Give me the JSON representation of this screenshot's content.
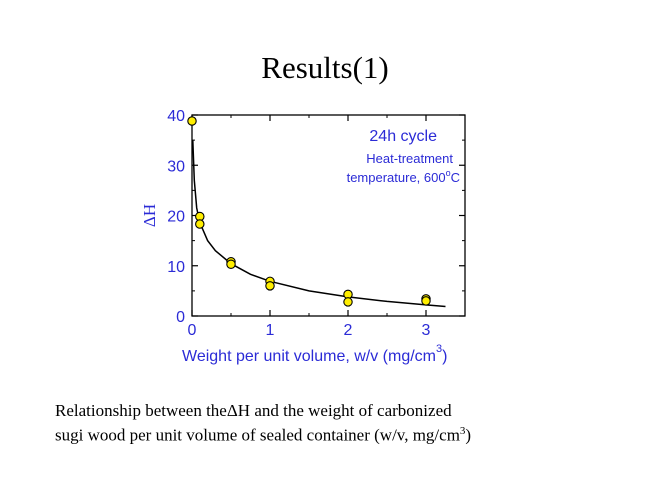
{
  "slide": {
    "title": "Results(1)",
    "caption_line1_pre": "Relationship between the",
    "caption_delta": "ΔH",
    "caption_line1_post": " and the weight of carbonized",
    "caption_line2_pre": "sugi wood per unit volume of sealed container (w/v, mg/cm",
    "caption_sup": "3",
    "caption_line2_post": ")"
  },
  "chart_data": {
    "type": "scatter",
    "title": "",
    "xlabel": "Weight per unit volume, w/v (mg/cm",
    "xlabel_sup": "3",
    "xlabel_post": ")",
    "ylabel": "ΔH",
    "xlim": [
      0,
      3.5
    ],
    "ylim": [
      0,
      40
    ],
    "x_ticks": [
      0,
      1,
      2,
      3
    ],
    "y_ticks": [
      0,
      10,
      20,
      30,
      40
    ],
    "grid": false,
    "annotations": [
      "24h cycle",
      "Heat-treatment",
      "temperature, 600",
      "o",
      "C"
    ],
    "series": [
      {
        "marker_color": "#ffee00",
        "marker_edge": "#000000",
        "points": [
          {
            "x": 0.0,
            "y": 38.8
          },
          {
            "x": 0.1,
            "y": 19.8
          },
          {
            "x": 0.1,
            "y": 18.3
          },
          {
            "x": 0.5,
            "y": 10.8
          },
          {
            "x": 0.5,
            "y": 10.3
          },
          {
            "x": 1.0,
            "y": 6.9
          },
          {
            "x": 1.0,
            "y": 6.0
          },
          {
            "x": 2.0,
            "y": 4.3
          },
          {
            "x": 2.0,
            "y": 2.8
          },
          {
            "x": 3.0,
            "y": 3.4
          },
          {
            "x": 3.0,
            "y": 3.0
          }
        ]
      }
    ],
    "fit_curve": {
      "color": "#000000",
      "points": [
        {
          "x": 0.01,
          "y": 35.0
        },
        {
          "x": 0.03,
          "y": 27.0
        },
        {
          "x": 0.06,
          "y": 21.5
        },
        {
          "x": 0.1,
          "y": 18.6
        },
        {
          "x": 0.2,
          "y": 15.0
        },
        {
          "x": 0.3,
          "y": 13.0
        },
        {
          "x": 0.5,
          "y": 10.4
        },
        {
          "x": 0.75,
          "y": 8.3
        },
        {
          "x": 1.0,
          "y": 6.9
        },
        {
          "x": 1.5,
          "y": 5.0
        },
        {
          "x": 2.0,
          "y": 3.8
        },
        {
          "x": 2.5,
          "y": 2.9
        },
        {
          "x": 3.0,
          "y": 2.2
        },
        {
          "x": 3.25,
          "y": 1.9
        }
      ]
    },
    "colors": {
      "axis_text": "#2b2bd6",
      "frame": "#000000"
    }
  }
}
